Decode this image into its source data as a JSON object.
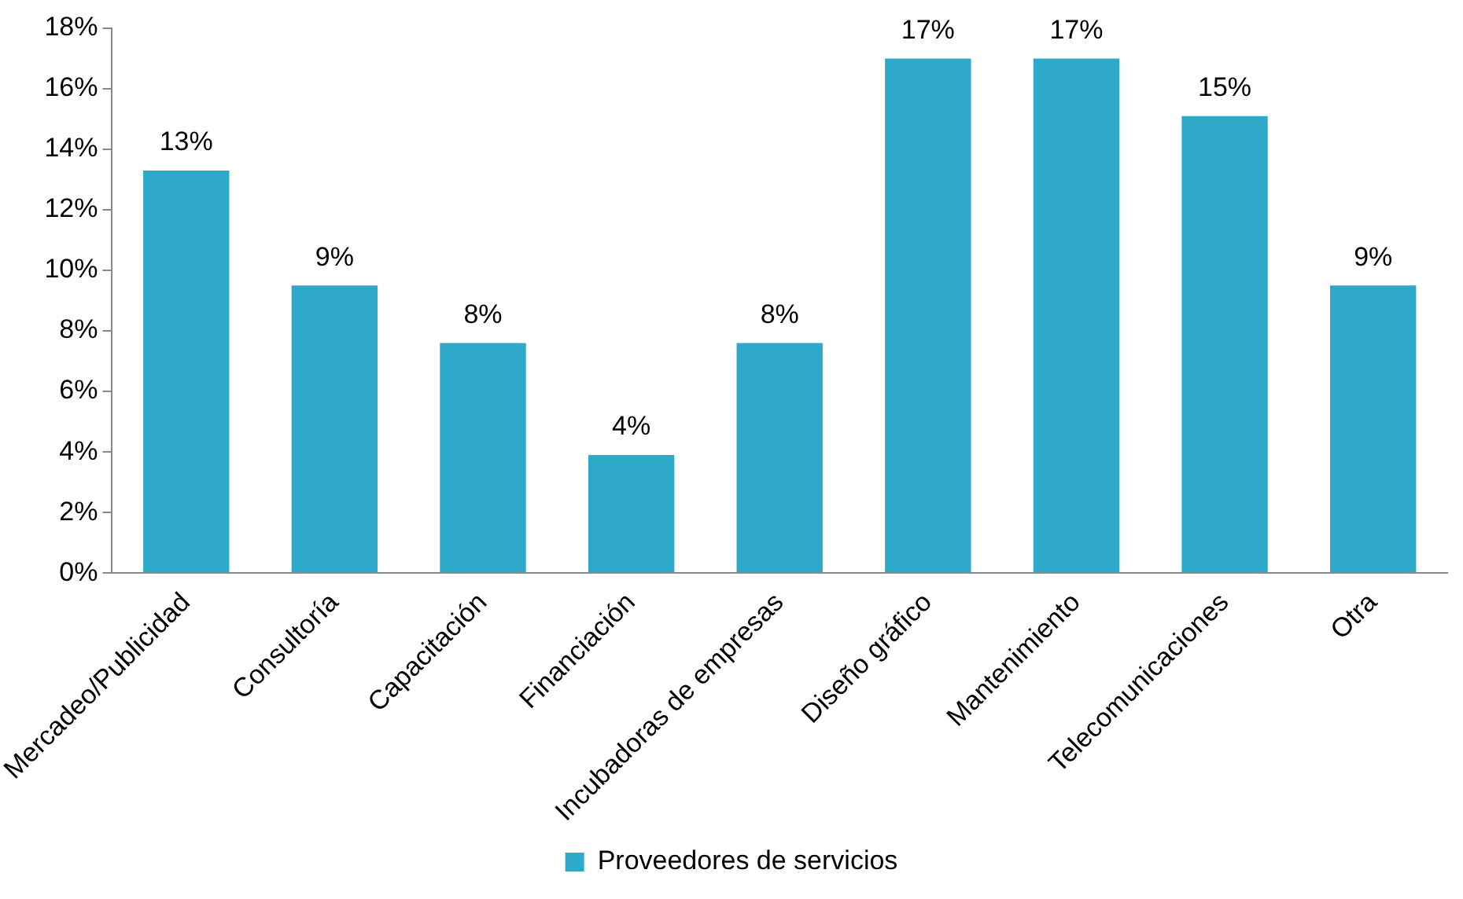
{
  "chart_data": {
    "type": "bar",
    "categories": [
      "Mercadeo/Publicidad",
      "Consultoría",
      "Capacitación",
      "Financiación",
      "Incubadoras de empresas",
      "Diseño gráfico",
      "Mantenimiento",
      "Telecomunicaciones",
      "Otra"
    ],
    "series": [
      {
        "name": "Proveedores de servicios",
        "color": "#2ea9c9",
        "values": [
          13.3,
          9.5,
          7.6,
          3.9,
          7.6,
          17.0,
          17.0,
          15.1,
          9.5
        ],
        "value_labels": [
          "13%",
          "9%",
          "8%",
          "4%",
          "8%",
          "17%",
          "17%",
          "15%",
          "9%"
        ]
      }
    ],
    "ylim": [
      0,
      18
    ],
    "yticks": [
      {
        "value": 0,
        "label": "0%"
      },
      {
        "value": 2,
        "label": "2%"
      },
      {
        "value": 4,
        "label": "4%"
      },
      {
        "value": 6,
        "label": "6%"
      },
      {
        "value": 8,
        "label": "8%"
      },
      {
        "value": 10,
        "label": "10%"
      },
      {
        "value": 12,
        "label": "12%"
      },
      {
        "value": 14,
        "label": "14%"
      },
      {
        "value": 16,
        "label": "16%"
      },
      {
        "value": 18,
        "label": "18%"
      }
    ],
    "grid": false,
    "legend": "bottom"
  }
}
